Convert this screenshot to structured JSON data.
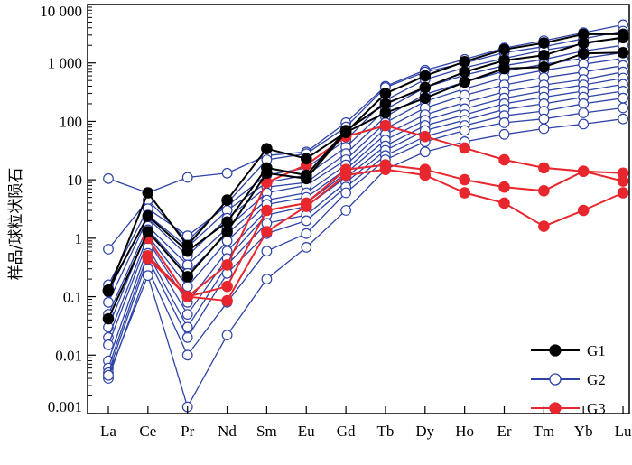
{
  "chart_data": {
    "type": "line",
    "title": "",
    "xlabel": "",
    "ylabel": "样品/球粒状陨石",
    "yscale": "log",
    "ylim": [
      0.001,
      10000
    ],
    "y_tick_labels": [
      "0.001",
      "0.01",
      "0.1",
      "1",
      "10",
      "100",
      "1 000",
      "10 000"
    ],
    "categories": [
      "La",
      "Ce",
      "Pr",
      "Nd",
      "Sm",
      "Eu",
      "Gd",
      "Tb",
      "Dy",
      "Ho",
      "Er",
      "Tm",
      "Yb",
      "Lu"
    ],
    "legend_position": "bottom-right",
    "groups": [
      {
        "name": "G1",
        "color": "#000000",
        "marker": "filled-circle",
        "series": [
          {
            "values": [
              0.125,
              6,
              0.75,
              4.5,
              34,
              23,
              65,
              300,
              600,
              1050,
              1700,
              2200,
              3100,
              3100
            ]
          },
          {
            "values": [
              0.13,
              2.4,
              0.6,
              1.9,
              16,
              12,
              70,
              200,
              380,
              700,
              1100,
              1350,
              2200,
              2700
            ]
          },
          {
            "values": [
              0.042,
              1.3,
              0.22,
              1.3,
              13,
              10.5,
              65,
              140,
              250,
              470,
              800,
              850,
              1450,
              1500
            ]
          }
        ]
      },
      {
        "name": "G2",
        "color": "#2e43a6",
        "marker": "open-circle",
        "series": [
          {
            "values": [
              10.5,
              6,
              11,
              13,
              26,
              30,
              95,
              400,
              750,
              1150,
              1800,
              2400,
              3300,
              4500
            ]
          },
          {
            "values": [
              0.65,
              4.5,
              0.9,
              4,
              22,
              28,
              80,
              380,
              700,
              1000,
              1500,
              1900,
              2600,
              3500
            ]
          },
          {
            "values": [
              0.16,
              3.2,
              1.1,
              3.6,
              12,
              16,
              48,
              230,
              520,
              830,
              1200,
              1650,
              2100,
              2800
            ]
          },
          {
            "values": [
              0.12,
              2.5,
              0.7,
              3,
              9,
              12,
              36,
              160,
              380,
              620,
              900,
              1150,
              1600,
              2000
            ]
          },
          {
            "values": [
              0.08,
              2.2,
              0.5,
              2.2,
              7.5,
              9,
              28,
              120,
              290,
              470,
              720,
              950,
              1200,
              1500
            ]
          },
          {
            "values": [
              0.05,
              1.6,
              0.35,
              1.5,
              6,
              8,
              22,
              95,
              220,
              360,
              560,
              750,
              950,
              1200
            ]
          },
          {
            "values": [
              0.03,
              1.4,
              0.25,
              1.2,
              4.5,
              6,
              18,
              75,
              170,
              280,
              420,
              560,
              700,
              900
            ]
          },
          {
            "values": [
              0.02,
              1.1,
              0.15,
              0.9,
              3.8,
              5,
              15,
              60,
              130,
              210,
              320,
              420,
              520,
              700
            ]
          },
          {
            "values": [
              0.015,
              0.9,
              0.08,
              0.6,
              3,
              4,
              13,
              48,
              105,
              165,
              250,
              330,
              420,
              550
            ]
          },
          {
            "values": [
              0.008,
              0.7,
              0.05,
              0.45,
              2.5,
              3.5,
              11,
              38,
              85,
              130,
              200,
              260,
              330,
              430
            ]
          },
          {
            "values": [
              0.006,
              0.55,
              0.03,
              0.35,
              1.8,
              2.5,
              9,
              32,
              70,
              105,
              160,
              200,
              260,
              330
            ]
          },
          {
            "values": [
              0.005,
              0.45,
              0.02,
              0.25,
              1.2,
              2,
              7.5,
              26,
              55,
              85,
              125,
              150,
              200,
              250
            ]
          },
          {
            "values": [
              0.004,
              0.3,
              0.01,
              0.08,
              0.6,
              1.2,
              6,
              22,
              45,
              70,
              95,
              110,
              140,
              170
            ]
          },
          {
            "values": [
              0.0045,
              0.23,
              0.0013,
              0.022,
              0.2,
              0.7,
              3,
              15,
              30,
              45,
              60,
              75,
              90,
              110
            ]
          }
        ]
      },
      {
        "name": "G3",
        "color": "#e8262d",
        "marker": "filled-circle",
        "series": [
          {
            "values": [
              null,
              1.0,
              0.1,
              0.35,
              9,
              18,
              55,
              85,
              55,
              35,
              22,
              16,
              14,
              13
            ]
          },
          {
            "values": [
              null,
              0.5,
              0.1,
              0.15,
              3,
              4,
              15,
              18,
              15,
              10,
              7.5,
              6.5,
              14,
              9.5
            ]
          },
          {
            "values": [
              null,
              0.45,
              0.1,
              0.085,
              1.3,
              3.5,
              12,
              15,
              12,
              6,
              4,
              1.6,
              3,
              6
            ]
          }
        ]
      }
    ]
  }
}
